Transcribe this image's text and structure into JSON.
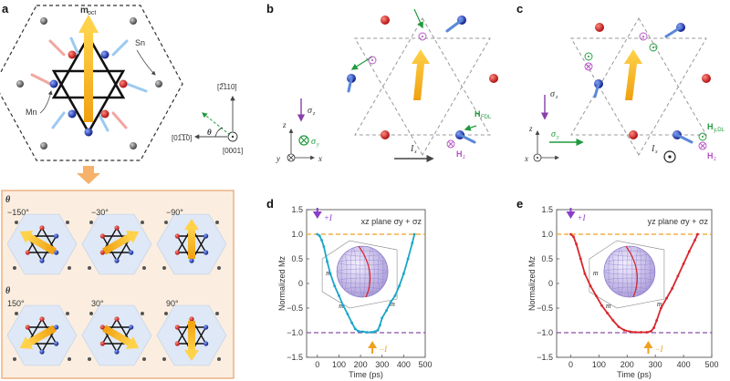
{
  "panel_a": {
    "label": "a",
    "m_oct": "m",
    "m_oct_sub": "oct",
    "sn": "Sn",
    "mn": "Mn",
    "dir_2110": "[2̅110]",
    "dir_0110": "[01̅1̅0]",
    "dir_0001": "[0001]",
    "theta": "θ",
    "grid_theta": "θ",
    "angles_top": [
      "−150°",
      "−30°",
      "−90°"
    ],
    "angles_bottom": [
      "150°",
      "30°",
      "90°"
    ]
  },
  "panel_b": {
    "label": "b",
    "sigma_z": "σ",
    "sigma_z_sub": "z",
    "sigma_y": "σ",
    "sigma_y_sub": "y",
    "h_fdl": "H",
    "h_fdl_sub": "FDL",
    "h_z": "H",
    "h_z_sub": "z",
    "current": "I",
    "current_sub": "x",
    "ax_z": "z",
    "ax_y": "y",
    "ax_x": "x"
  },
  "panel_c": {
    "label": "c",
    "sigma_z": "σ",
    "sigma_z_sub": "z",
    "sigma_y": "σ",
    "sigma_y_sub": "y",
    "h_fdl": "H",
    "h_fdl_sub": "y,DL",
    "h_z": "H",
    "h_z_sub": "z",
    "current": "I",
    "current_sub": "x",
    "ax_z": "z",
    "ax_x": "x"
  },
  "chart_data": [
    {
      "type": "line",
      "panel": "d",
      "title": "xz plane σy + σz",
      "xlabel": "Time (ps)",
      "ylabel": "Normalized Mz",
      "xlim": [
        -50,
        500
      ],
      "ylim": [
        -1.5,
        1.5
      ],
      "xticks": [
        0,
        100,
        200,
        300,
        400,
        500
      ],
      "yticks": [
        1.5,
        1.0,
        0.5,
        0,
        -0.5,
        -1.0,
        -1.5
      ],
      "ytick_labels": [
        "1.5",
        "1.0",
        "0.5",
        "0",
        "−0.5",
        "−1.0",
        "−1.5"
      ],
      "xtick_labels": [
        "0",
        "100",
        "200",
        "300",
        "400",
        "500"
      ],
      "color": "#1aa6c8",
      "reference_lines": [
        {
          "y": 1.0,
          "color": "#f0a020"
        },
        {
          "y": -1.0,
          "color": "#8a4fa8"
        }
      ],
      "annotations": [
        {
          "text": "+I",
          "x": 0,
          "color": "#8a3fc8"
        },
        {
          "text": "−I",
          "x": 255,
          "color": "#f0a020"
        }
      ],
      "inset_labels": [
        "m",
        "m",
        "m"
      ],
      "x": [
        0,
        10,
        20,
        30,
        45,
        60,
        80,
        100,
        120,
        140,
        160,
        175,
        190,
        210,
        230,
        250,
        265,
        280,
        290,
        300,
        320,
        340,
        360,
        380,
        400,
        420,
        440,
        450
      ],
      "y": [
        1.0,
        0.97,
        0.88,
        0.75,
        0.45,
        0.2,
        -0.05,
        -0.25,
        -0.45,
        -0.62,
        -0.8,
        -0.92,
        -0.97,
        -0.98,
        -0.99,
        -0.99,
        -0.98,
        -0.95,
        -0.85,
        -0.7,
        -0.55,
        -0.38,
        -0.25,
        -0.05,
        0.2,
        0.5,
        0.82,
        1.0
      ]
    },
    {
      "type": "line",
      "panel": "e",
      "title": "yz plane σy + σz",
      "xlabel": "Time (ps)",
      "ylabel": "Normalized Mz",
      "xlim": [
        -50,
        500
      ],
      "ylim": [
        -1.5,
        1.5
      ],
      "xticks": [
        0,
        100,
        200,
        300,
        400,
        500
      ],
      "yticks": [
        1.5,
        1.0,
        0.5,
        0,
        -0.5,
        -1.0,
        -1.5
      ],
      "ytick_labels": [
        "1.5",
        "1.0",
        "0.5",
        "0",
        "−0.5",
        "−1.0",
        "−1.5"
      ],
      "xtick_labels": [
        "0",
        "100",
        "200",
        "300",
        "400",
        "500"
      ],
      "color": "#d9262c",
      "reference_lines": [
        {
          "y": 1.0,
          "color": "#f0a020"
        },
        {
          "y": -1.0,
          "color": "#8a4fa8"
        }
      ],
      "annotations": [
        {
          "text": "+I",
          "x": 0,
          "color": "#8a3fc8"
        },
        {
          "text": "−I",
          "x": 275,
          "color": "#f0a020"
        }
      ],
      "inset_labels": [
        "m",
        "m",
        "m"
      ],
      "x": [
        0,
        10,
        20,
        35,
        50,
        70,
        90,
        110,
        130,
        150,
        170,
        190,
        210,
        230,
        250,
        270,
        285,
        295,
        305,
        320,
        340,
        360,
        380,
        400,
        420,
        440,
        450
      ],
      "y": [
        1.0,
        0.95,
        0.8,
        0.5,
        0.2,
        -0.05,
        -0.25,
        -0.45,
        -0.6,
        -0.75,
        -0.88,
        -0.95,
        -0.98,
        -0.99,
        -0.99,
        -0.99,
        -0.97,
        -0.9,
        -0.75,
        -0.5,
        -0.3,
        -0.1,
        0.15,
        0.4,
        0.65,
        0.88,
        1.0
      ]
    }
  ]
}
